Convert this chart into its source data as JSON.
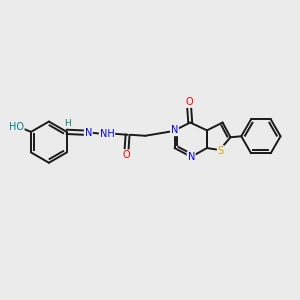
{
  "bg_color": "#ebebeb",
  "bond_color": "#1a1a1a",
  "atom_colors": {
    "O": "#ff0000",
    "N": "#0000ee",
    "S": "#ccaa00",
    "HO": "#008080",
    "H": "#008080"
  },
  "figsize": [
    3.0,
    3.0
  ],
  "dpi": 100
}
